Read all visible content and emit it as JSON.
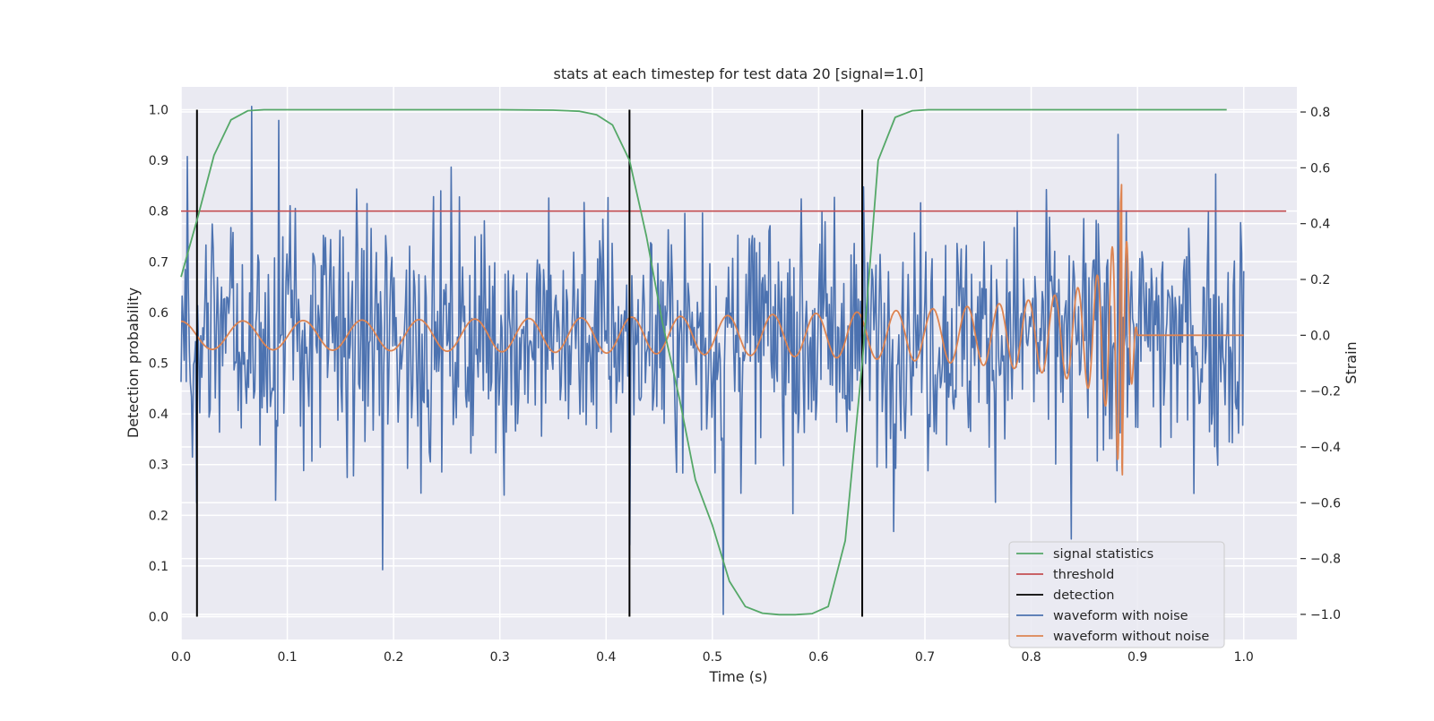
{
  "chart_data": {
    "type": "line",
    "title": "stats at each timestep for test data 20 [signal=1.0]",
    "xlabel": "Time (s)",
    "ylabel": "Detection probability",
    "y2label": "Strain",
    "xlim": [
      0.0,
      1.05
    ],
    "ylim": [
      -0.045,
      1.045
    ],
    "y2lim": [
      -1.09,
      0.89
    ],
    "xticks": [
      0.0,
      0.1,
      0.2,
      0.3,
      0.4,
      0.5,
      0.6,
      0.7,
      0.8,
      0.9,
      1.0
    ],
    "xtick_labels": [
      "0.0",
      "0.1",
      "0.2",
      "0.3",
      "0.4",
      "0.5",
      "0.6",
      "0.7",
      "0.8",
      "0.9",
      "1.0"
    ],
    "yticks": [
      0.0,
      0.1,
      0.2,
      0.3,
      0.4,
      0.5,
      0.6,
      0.7,
      0.8,
      0.9,
      1.0
    ],
    "ytick_labels": [
      "0.0",
      "0.1",
      "0.2",
      "0.3",
      "0.4",
      "0.5",
      "0.6",
      "0.7",
      "0.8",
      "0.9",
      "1.0"
    ],
    "y2ticks": [
      0.8,
      0.6,
      0.4,
      0.2,
      0.0,
      -0.2,
      -0.4,
      -0.6,
      -0.8,
      -1.0
    ],
    "y2tick_labels": [
      "0.8",
      "0.6",
      "0.4",
      "0.2",
      "0.0",
      "−0.2",
      "−0.4",
      "−0.6",
      "−0.8",
      "−1.0"
    ],
    "grid": true,
    "legend_position": "lower-right",
    "background": "#eaeaf2",
    "series": [
      {
        "name": "signal statistics",
        "axis": "left",
        "color": "#55a868",
        "x": [
          0.0,
          0.016,
          0.031,
          0.047,
          0.063,
          0.078,
          0.094,
          0.109,
          0.125,
          0.2,
          0.3,
          0.35,
          0.375,
          0.391,
          0.406,
          0.422,
          0.438,
          0.453,
          0.469,
          0.484,
          0.5,
          0.516,
          0.531,
          0.547,
          0.563,
          0.578,
          0.594,
          0.609,
          0.625,
          0.641,
          0.656,
          0.672,
          0.688,
          0.703,
          0.75,
          0.8,
          0.9,
          0.984
        ],
        "y": [
          0.67,
          0.79,
          0.91,
          0.98,
          0.998,
          1.0,
          1.0,
          1.0,
          1.0,
          1.0,
          1.0,
          0.999,
          0.997,
          0.99,
          0.97,
          0.9,
          0.75,
          0.58,
          0.43,
          0.27,
          0.18,
          0.07,
          0.02,
          0.007,
          0.004,
          0.004,
          0.006,
          0.02,
          0.15,
          0.5,
          0.9,
          0.985,
          0.998,
          1.0,
          1.0,
          1.0,
          1.0,
          1.0
        ]
      },
      {
        "name": "threshold",
        "axis": "left",
        "color": "#c44e52",
        "x": [
          0.0,
          1.04
        ],
        "y": [
          0.8,
          0.8
        ]
      },
      {
        "name": "detection",
        "axis": "left",
        "color": "#000000",
        "x": [
          0.015,
          0.422,
          0.641
        ],
        "y_range": [
          0.0,
          1.0
        ]
      },
      {
        "name": "waveform with noise",
        "axis": "right",
        "color": "#4c72b0",
        "x_range": [
          0.0,
          1.0
        ],
        "n_points": 1024,
        "y_summary": "Gaussian noise about 0.0 strain with standard deviation about 0.22; peaks near 0.8 and troughs near −1.0",
        "y_notable_points": [
          {
            "x": 0.015,
            "y": -0.6
          },
          {
            "x": 0.066,
            "y": 0.82
          },
          {
            "x": 0.092,
            "y": 0.77
          },
          {
            "x": 0.19,
            "y": -0.84
          },
          {
            "x": 0.422,
            "y": -0.75
          },
          {
            "x": 0.51,
            "y": -1.0
          },
          {
            "x": 0.838,
            "y": -0.73
          },
          {
            "x": 0.882,
            "y": 0.72
          }
        ]
      },
      {
        "name": "waveform without noise",
        "axis": "right",
        "color": "#dd8452",
        "x_range": [
          0.0,
          1.0
        ],
        "y_summary": "Chirp signal: sinusoid with amplitude about 0.05 and frequency about 17 Hz at t=0, growing in amplitude and frequency up to the merger near t=0.885 (peak about 0.54, trough about −0.5), followed by a flat 0.0 ringdown to t=1.0",
        "y_notable_points": [
          {
            "x": 0.885,
            "y": 0.54
          },
          {
            "x": 0.886,
            "y": -0.5
          },
          {
            "x": 0.9,
            "y": 0.0
          },
          {
            "x": 1.0,
            "y": 0.0
          }
        ]
      }
    ]
  }
}
